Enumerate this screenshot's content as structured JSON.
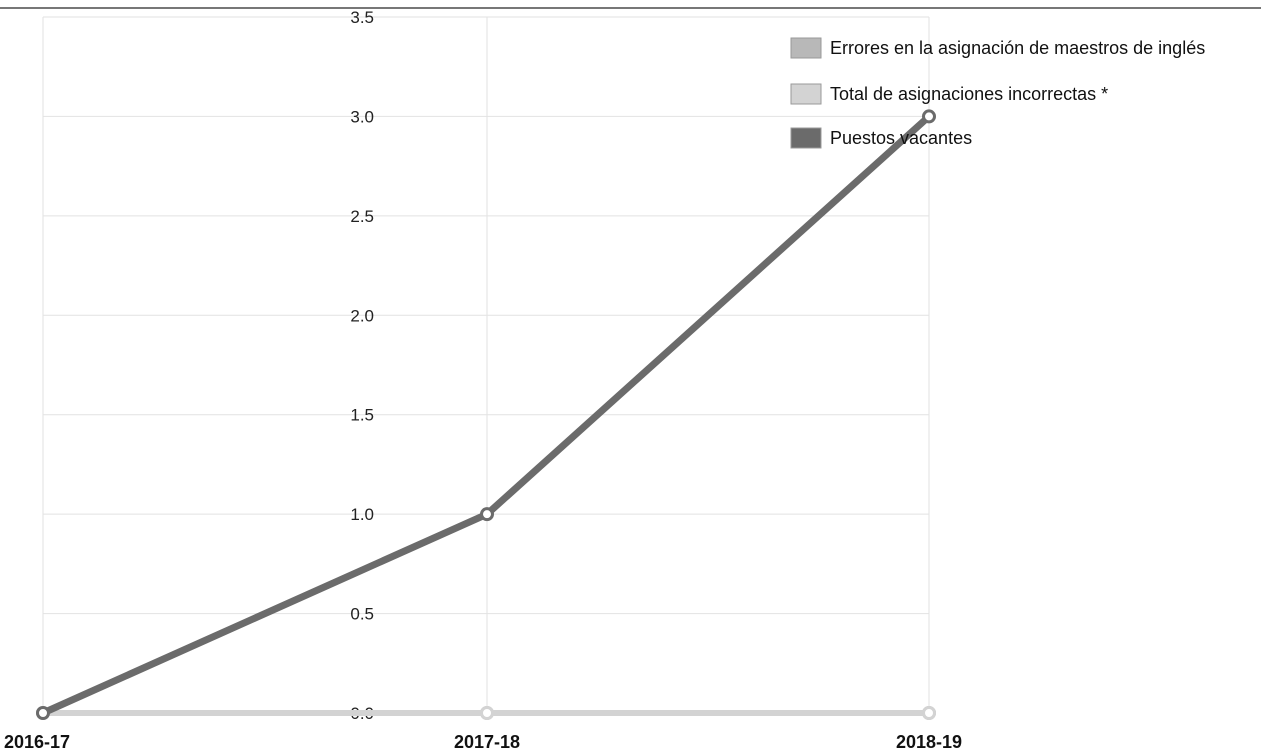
{
  "chart_data": {
    "type": "line",
    "categories": [
      "2016-17",
      "2017-18",
      "2018-19"
    ],
    "ylim": [
      0,
      3.5
    ],
    "yticks": [
      "0.0",
      "0.5",
      "1.0",
      "1.5",
      "2.0",
      "2.5",
      "3.0",
      "3.5"
    ],
    "grid": true,
    "legend_position": "top-right",
    "series": [
      {
        "name": "Errores en la asignación de maestros de inglés",
        "values": [
          0,
          0,
          0
        ],
        "color": "#b8b8b8"
      },
      {
        "name": "Total de asignaciones incorrectas *",
        "values": [
          0,
          0,
          0
        ],
        "color": "#d3d3d3"
      },
      {
        "name": "Puestos vacantes",
        "values": [
          0,
          1,
          3
        ],
        "color": "#6b6b6b"
      }
    ]
  }
}
